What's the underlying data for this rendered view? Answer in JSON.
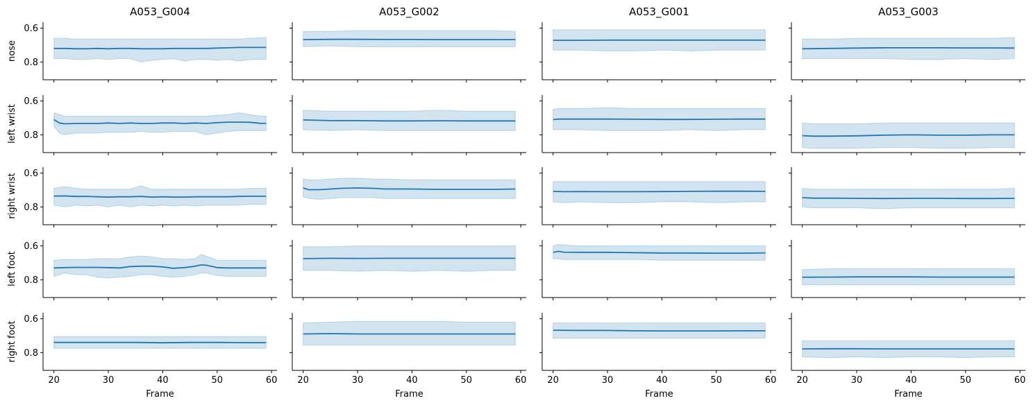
{
  "chart_data": {
    "type": "line",
    "layout": "small-multiples grid",
    "columns": [
      "A053_G004",
      "A053_G002",
      "A053_G001",
      "A053_G003"
    ],
    "rows": [
      "nose",
      "left wrist",
      "right wrist",
      "left foot",
      "right foot"
    ],
    "xlabel": "Frame",
    "x_ticks": [
      20,
      30,
      40,
      50,
      60
    ],
    "y_ticks": [
      0.6,
      0.8
    ],
    "xlim": [
      18,
      61
    ],
    "ylim": [
      0.905,
      0.565
    ],
    "y_inverted": true,
    "x_range": [
      20,
      59
    ],
    "line_color": "#1f77b4",
    "band_color": "#1f77b4",
    "band_opacity": 0.2,
    "grid": false,
    "panels": [
      {
        "row": "nose",
        "column": "A053_G004",
        "mean_x": [
          20,
          22,
          24,
          26,
          28,
          30,
          32,
          34,
          36,
          38,
          40,
          42,
          44,
          46,
          48,
          50,
          52,
          54,
          56,
          59
        ],
        "mean_y": [
          0.72,
          0.72,
          0.722,
          0.722,
          0.72,
          0.722,
          0.72,
          0.72,
          0.722,
          0.722,
          0.722,
          0.72,
          0.72,
          0.72,
          0.72,
          0.718,
          0.716,
          0.714,
          0.714,
          0.714
        ],
        "lower": [
          0.66,
          0.66,
          0.665,
          0.665,
          0.665,
          0.665,
          0.665,
          0.665,
          0.665,
          0.665,
          0.665,
          0.665,
          0.665,
          0.665,
          0.665,
          0.665,
          0.665,
          0.665,
          0.66,
          0.655
        ],
        "upper": [
          0.78,
          0.78,
          0.785,
          0.785,
          0.78,
          0.785,
          0.78,
          0.78,
          0.8,
          0.79,
          0.785,
          0.78,
          0.795,
          0.785,
          0.785,
          0.79,
          0.785,
          0.795,
          0.785,
          0.785
        ]
      },
      {
        "row": "nose",
        "column": "A053_G002",
        "mean_x": [
          20,
          25,
          30,
          35,
          40,
          45,
          50,
          55,
          59
        ],
        "mean_y": [
          0.668,
          0.666,
          0.666,
          0.667,
          0.667,
          0.668,
          0.668,
          0.668,
          0.668
        ],
        "lower": [
          0.62,
          0.62,
          0.615,
          0.615,
          0.615,
          0.615,
          0.615,
          0.615,
          0.62
        ],
        "upper": [
          0.71,
          0.705,
          0.71,
          0.71,
          0.71,
          0.71,
          0.71,
          0.71,
          0.71
        ]
      },
      {
        "row": "nose",
        "column": "A053_G001",
        "mean_x": [
          20,
          25,
          30,
          35,
          40,
          45,
          50,
          55,
          59
        ],
        "mean_y": [
          0.672,
          0.672,
          0.671,
          0.671,
          0.671,
          0.671,
          0.671,
          0.671,
          0.671
        ],
        "lower": [
          0.61,
          0.61,
          0.61,
          0.61,
          0.61,
          0.61,
          0.61,
          0.61,
          0.61
        ],
        "upper": [
          0.73,
          0.73,
          0.735,
          0.735,
          0.73,
          0.735,
          0.73,
          0.73,
          0.73
        ]
      },
      {
        "row": "nose",
        "column": "A053_G003",
        "mean_x": [
          20,
          25,
          30,
          35,
          40,
          45,
          50,
          55,
          59
        ],
        "mean_y": [
          0.722,
          0.72,
          0.718,
          0.716,
          0.716,
          0.716,
          0.717,
          0.717,
          0.718
        ],
        "lower": [
          0.665,
          0.665,
          0.66,
          0.66,
          0.66,
          0.66,
          0.66,
          0.66,
          0.655
        ],
        "upper": [
          0.78,
          0.78,
          0.78,
          0.78,
          0.785,
          0.785,
          0.78,
          0.785,
          0.78
        ]
      },
      {
        "row": "left wrist",
        "column": "A053_G004",
        "mean_x": [
          20,
          21,
          22,
          24,
          26,
          28,
          30,
          32,
          34,
          36,
          38,
          40,
          42,
          44,
          46,
          48,
          50,
          52,
          54,
          56,
          58,
          59
        ],
        "mean_y": [
          0.71,
          0.73,
          0.735,
          0.733,
          0.733,
          0.733,
          0.73,
          0.733,
          0.73,
          0.733,
          0.733,
          0.73,
          0.73,
          0.733,
          0.73,
          0.733,
          0.728,
          0.725,
          0.725,
          0.726,
          0.732,
          0.733
        ],
        "lower": [
          0.67,
          0.68,
          0.69,
          0.69,
          0.69,
          0.69,
          0.69,
          0.69,
          0.69,
          0.69,
          0.69,
          0.69,
          0.69,
          0.69,
          0.69,
          0.69,
          0.685,
          0.68,
          0.67,
          0.68,
          0.69,
          0.69
        ],
        "upper": [
          0.75,
          0.79,
          0.8,
          0.79,
          0.79,
          0.79,
          0.785,
          0.785,
          0.785,
          0.78,
          0.785,
          0.785,
          0.78,
          0.78,
          0.78,
          0.8,
          0.79,
          0.78,
          0.775,
          0.775,
          0.775,
          0.775
        ]
      },
      {
        "row": "left wrist",
        "column": "A053_G002",
        "mean_x": [
          20,
          25,
          30,
          35,
          40,
          45,
          50,
          55,
          59
        ],
        "mean_y": [
          0.712,
          0.716,
          0.716,
          0.718,
          0.718,
          0.717,
          0.718,
          0.718,
          0.718
        ],
        "lower": [
          0.655,
          0.66,
          0.66,
          0.66,
          0.66,
          0.655,
          0.66,
          0.66,
          0.66
        ],
        "upper": [
          0.77,
          0.775,
          0.77,
          0.775,
          0.775,
          0.775,
          0.775,
          0.775,
          0.775
        ]
      },
      {
        "row": "left wrist",
        "column": "A053_G001",
        "mean_x": [
          20,
          21,
          25,
          30,
          35,
          40,
          45,
          50,
          55,
          59
        ],
        "mean_y": [
          0.71,
          0.707,
          0.707,
          0.707,
          0.708,
          0.709,
          0.709,
          0.708,
          0.707,
          0.707
        ],
        "lower": [
          0.65,
          0.645,
          0.645,
          0.64,
          0.645,
          0.645,
          0.645,
          0.645,
          0.645,
          0.645
        ],
        "upper": [
          0.77,
          0.77,
          0.77,
          0.775,
          0.775,
          0.775,
          0.77,
          0.775,
          0.77,
          0.77
        ]
      },
      {
        "row": "left wrist",
        "column": "A053_G003",
        "mean_x": [
          20,
          22,
          25,
          30,
          35,
          40,
          45,
          50,
          55,
          59
        ],
        "mean_y": [
          0.805,
          0.808,
          0.808,
          0.806,
          0.802,
          0.8,
          0.802,
          0.802,
          0.8,
          0.8
        ],
        "lower": [
          0.73,
          0.735,
          0.735,
          0.735,
          0.73,
          0.73,
          0.73,
          0.73,
          0.73,
          0.73
        ],
        "upper": [
          0.875,
          0.88,
          0.88,
          0.88,
          0.875,
          0.875,
          0.88,
          0.88,
          0.875,
          0.875
        ]
      },
      {
        "row": "right wrist",
        "column": "A053_G004",
        "mean_x": [
          20,
          22,
          24,
          26,
          28,
          30,
          32,
          34,
          36,
          38,
          40,
          42,
          44,
          46,
          48,
          50,
          52,
          54,
          56,
          59
        ],
        "mean_y": [
          0.736,
          0.735,
          0.738,
          0.738,
          0.74,
          0.742,
          0.74,
          0.74,
          0.738,
          0.742,
          0.74,
          0.742,
          0.742,
          0.74,
          0.74,
          0.74,
          0.74,
          0.738,
          0.737,
          0.737
        ],
        "lower": [
          0.69,
          0.68,
          0.69,
          0.695,
          0.695,
          0.695,
          0.695,
          0.695,
          0.675,
          0.695,
          0.695,
          0.695,
          0.695,
          0.695,
          0.695,
          0.695,
          0.695,
          0.695,
          0.69,
          0.69
        ],
        "upper": [
          0.79,
          0.8,
          0.79,
          0.795,
          0.79,
          0.8,
          0.79,
          0.8,
          0.79,
          0.795,
          0.79,
          0.795,
          0.79,
          0.795,
          0.79,
          0.79,
          0.79,
          0.79,
          0.785,
          0.785
        ]
      },
      {
        "row": "right wrist",
        "column": "A053_G002",
        "mean_x": [
          20,
          21,
          23,
          25,
          27,
          30,
          33,
          35,
          40,
          45,
          50,
          55,
          59
        ],
        "mean_y": [
          0.688,
          0.698,
          0.698,
          0.694,
          0.69,
          0.688,
          0.69,
          0.694,
          0.694,
          0.696,
          0.696,
          0.696,
          0.694
        ],
        "lower": [
          0.635,
          0.64,
          0.64,
          0.635,
          0.63,
          0.63,
          0.635,
          0.635,
          0.64,
          0.64,
          0.64,
          0.64,
          0.64
        ],
        "upper": [
          0.74,
          0.75,
          0.755,
          0.75,
          0.745,
          0.745,
          0.745,
          0.75,
          0.75,
          0.75,
          0.75,
          0.75,
          0.75
        ]
      },
      {
        "row": "right wrist",
        "column": "A053_G001",
        "mean_x": [
          20,
          22,
          25,
          30,
          35,
          40,
          45,
          50,
          55,
          59
        ],
        "mean_y": [
          0.708,
          0.71,
          0.709,
          0.71,
          0.71,
          0.709,
          0.708,
          0.707,
          0.707,
          0.708
        ],
        "lower": [
          0.65,
          0.65,
          0.65,
          0.65,
          0.65,
          0.65,
          0.65,
          0.65,
          0.65,
          0.65
        ],
        "upper": [
          0.77,
          0.775,
          0.77,
          0.775,
          0.775,
          0.77,
          0.77,
          0.775,
          0.77,
          0.77
        ]
      },
      {
        "row": "right wrist",
        "column": "A053_G003",
        "mean_x": [
          20,
          22,
          25,
          30,
          35,
          40,
          45,
          50,
          55,
          59
        ],
        "mean_y": [
          0.745,
          0.748,
          0.748,
          0.749,
          0.75,
          0.749,
          0.749,
          0.75,
          0.75,
          0.749
        ],
        "lower": [
          0.69,
          0.695,
          0.695,
          0.695,
          0.695,
          0.695,
          0.695,
          0.695,
          0.695,
          0.69
        ],
        "upper": [
          0.8,
          0.805,
          0.805,
          0.805,
          0.81,
          0.805,
          0.805,
          0.805,
          0.805,
          0.805
        ]
      },
      {
        "row": "left foot",
        "column": "A053_G004",
        "mean_x": [
          20,
          22,
          24,
          26,
          28,
          30,
          32,
          34,
          36,
          38,
          40,
          42,
          44,
          46,
          47,
          48,
          50,
          52,
          54,
          56,
          59
        ],
        "mean_y": [
          0.73,
          0.728,
          0.727,
          0.727,
          0.727,
          0.728,
          0.73,
          0.722,
          0.72,
          0.72,
          0.724,
          0.732,
          0.728,
          0.72,
          0.712,
          0.714,
          0.728,
          0.73,
          0.73,
          0.73,
          0.73
        ],
        "lower": [
          0.685,
          0.68,
          0.68,
          0.68,
          0.675,
          0.675,
          0.675,
          0.665,
          0.66,
          0.665,
          0.675,
          0.675,
          0.68,
          0.675,
          0.65,
          0.66,
          0.685,
          0.685,
          0.685,
          0.685,
          0.685
        ],
        "upper": [
          0.78,
          0.76,
          0.77,
          0.77,
          0.785,
          0.79,
          0.785,
          0.78,
          0.77,
          0.77,
          0.78,
          0.785,
          0.78,
          0.77,
          0.76,
          0.76,
          0.775,
          0.78,
          0.78,
          0.78,
          0.78
        ]
      },
      {
        "row": "left foot",
        "column": "A053_G002",
        "mean_x": [
          20,
          25,
          30,
          35,
          40,
          45,
          50,
          55,
          59
        ],
        "mean_y": [
          0.675,
          0.673,
          0.674,
          0.673,
          0.673,
          0.673,
          0.673,
          0.673,
          0.673
        ],
        "lower": [
          0.605,
          0.605,
          0.6,
          0.6,
          0.6,
          0.6,
          0.6,
          0.6,
          0.6
        ],
        "upper": [
          0.745,
          0.745,
          0.75,
          0.745,
          0.75,
          0.745,
          0.75,
          0.745,
          0.745
        ]
      },
      {
        "row": "left foot",
        "column": "A053_G001",
        "mean_x": [
          20,
          21,
          22,
          25,
          30,
          35,
          40,
          45,
          50,
          55,
          59
        ],
        "mean_y": [
          0.638,
          0.632,
          0.637,
          0.638,
          0.638,
          0.64,
          0.642,
          0.642,
          0.643,
          0.643,
          0.641
        ],
        "lower": [
          0.6,
          0.59,
          0.595,
          0.6,
          0.6,
          0.6,
          0.6,
          0.6,
          0.6,
          0.6,
          0.6
        ],
        "upper": [
          0.675,
          0.675,
          0.68,
          0.68,
          0.68,
          0.68,
          0.685,
          0.685,
          0.685,
          0.685,
          0.685
        ]
      },
      {
        "row": "left foot",
        "column": "A053_G003",
        "mean_x": [
          20,
          25,
          30,
          35,
          40,
          45,
          50,
          55,
          59
        ],
        "mean_y": [
          0.785,
          0.784,
          0.783,
          0.783,
          0.783,
          0.784,
          0.784,
          0.784,
          0.784
        ],
        "lower": [
          0.74,
          0.735,
          0.735,
          0.735,
          0.735,
          0.735,
          0.735,
          0.735,
          0.735
        ],
        "upper": [
          0.83,
          0.83,
          0.83,
          0.83,
          0.83,
          0.83,
          0.83,
          0.83,
          0.83
        ]
      },
      {
        "row": "right foot",
        "column": "A053_G004",
        "mean_x": [
          20,
          25,
          30,
          35,
          40,
          45,
          50,
          55,
          59
        ],
        "mean_y": [
          0.74,
          0.74,
          0.74,
          0.74,
          0.742,
          0.74,
          0.74,
          0.741,
          0.741
        ],
        "lower": [
          0.705,
          0.705,
          0.705,
          0.705,
          0.705,
          0.705,
          0.705,
          0.705,
          0.705
        ],
        "upper": [
          0.775,
          0.775,
          0.775,
          0.775,
          0.775,
          0.775,
          0.775,
          0.775,
          0.775
        ]
      },
      {
        "row": "right foot",
        "column": "A053_G002",
        "mean_x": [
          20,
          25,
          30,
          35,
          40,
          45,
          50,
          55,
          59
        ],
        "mean_y": [
          0.69,
          0.688,
          0.69,
          0.69,
          0.69,
          0.69,
          0.69,
          0.69,
          0.69
        ],
        "lower": [
          0.625,
          0.62,
          0.615,
          0.615,
          0.615,
          0.615,
          0.62,
          0.62,
          0.62
        ],
        "upper": [
          0.755,
          0.755,
          0.755,
          0.755,
          0.755,
          0.755,
          0.755,
          0.755,
          0.755
        ]
      },
      {
        "row": "right foot",
        "column": "A053_G001",
        "mean_x": [
          20,
          25,
          30,
          35,
          40,
          45,
          50,
          55,
          59
        ],
        "mean_y": [
          0.668,
          0.669,
          0.669,
          0.671,
          0.672,
          0.672,
          0.672,
          0.671,
          0.671
        ],
        "lower": [
          0.625,
          0.625,
          0.625,
          0.625,
          0.625,
          0.625,
          0.625,
          0.625,
          0.625
        ],
        "upper": [
          0.715,
          0.715,
          0.715,
          0.715,
          0.715,
          0.715,
          0.715,
          0.715,
          0.715
        ]
      },
      {
        "row": "right foot",
        "column": "A053_G003",
        "mean_x": [
          20,
          25,
          30,
          35,
          40,
          45,
          50,
          55,
          59
        ],
        "mean_y": [
          0.778,
          0.777,
          0.777,
          0.778,
          0.778,
          0.778,
          0.778,
          0.778,
          0.778
        ],
        "lower": [
          0.73,
          0.73,
          0.73,
          0.73,
          0.73,
          0.73,
          0.73,
          0.73,
          0.73
        ],
        "upper": [
          0.825,
          0.83,
          0.825,
          0.83,
          0.825,
          0.825,
          0.83,
          0.825,
          0.825
        ]
      }
    ]
  }
}
